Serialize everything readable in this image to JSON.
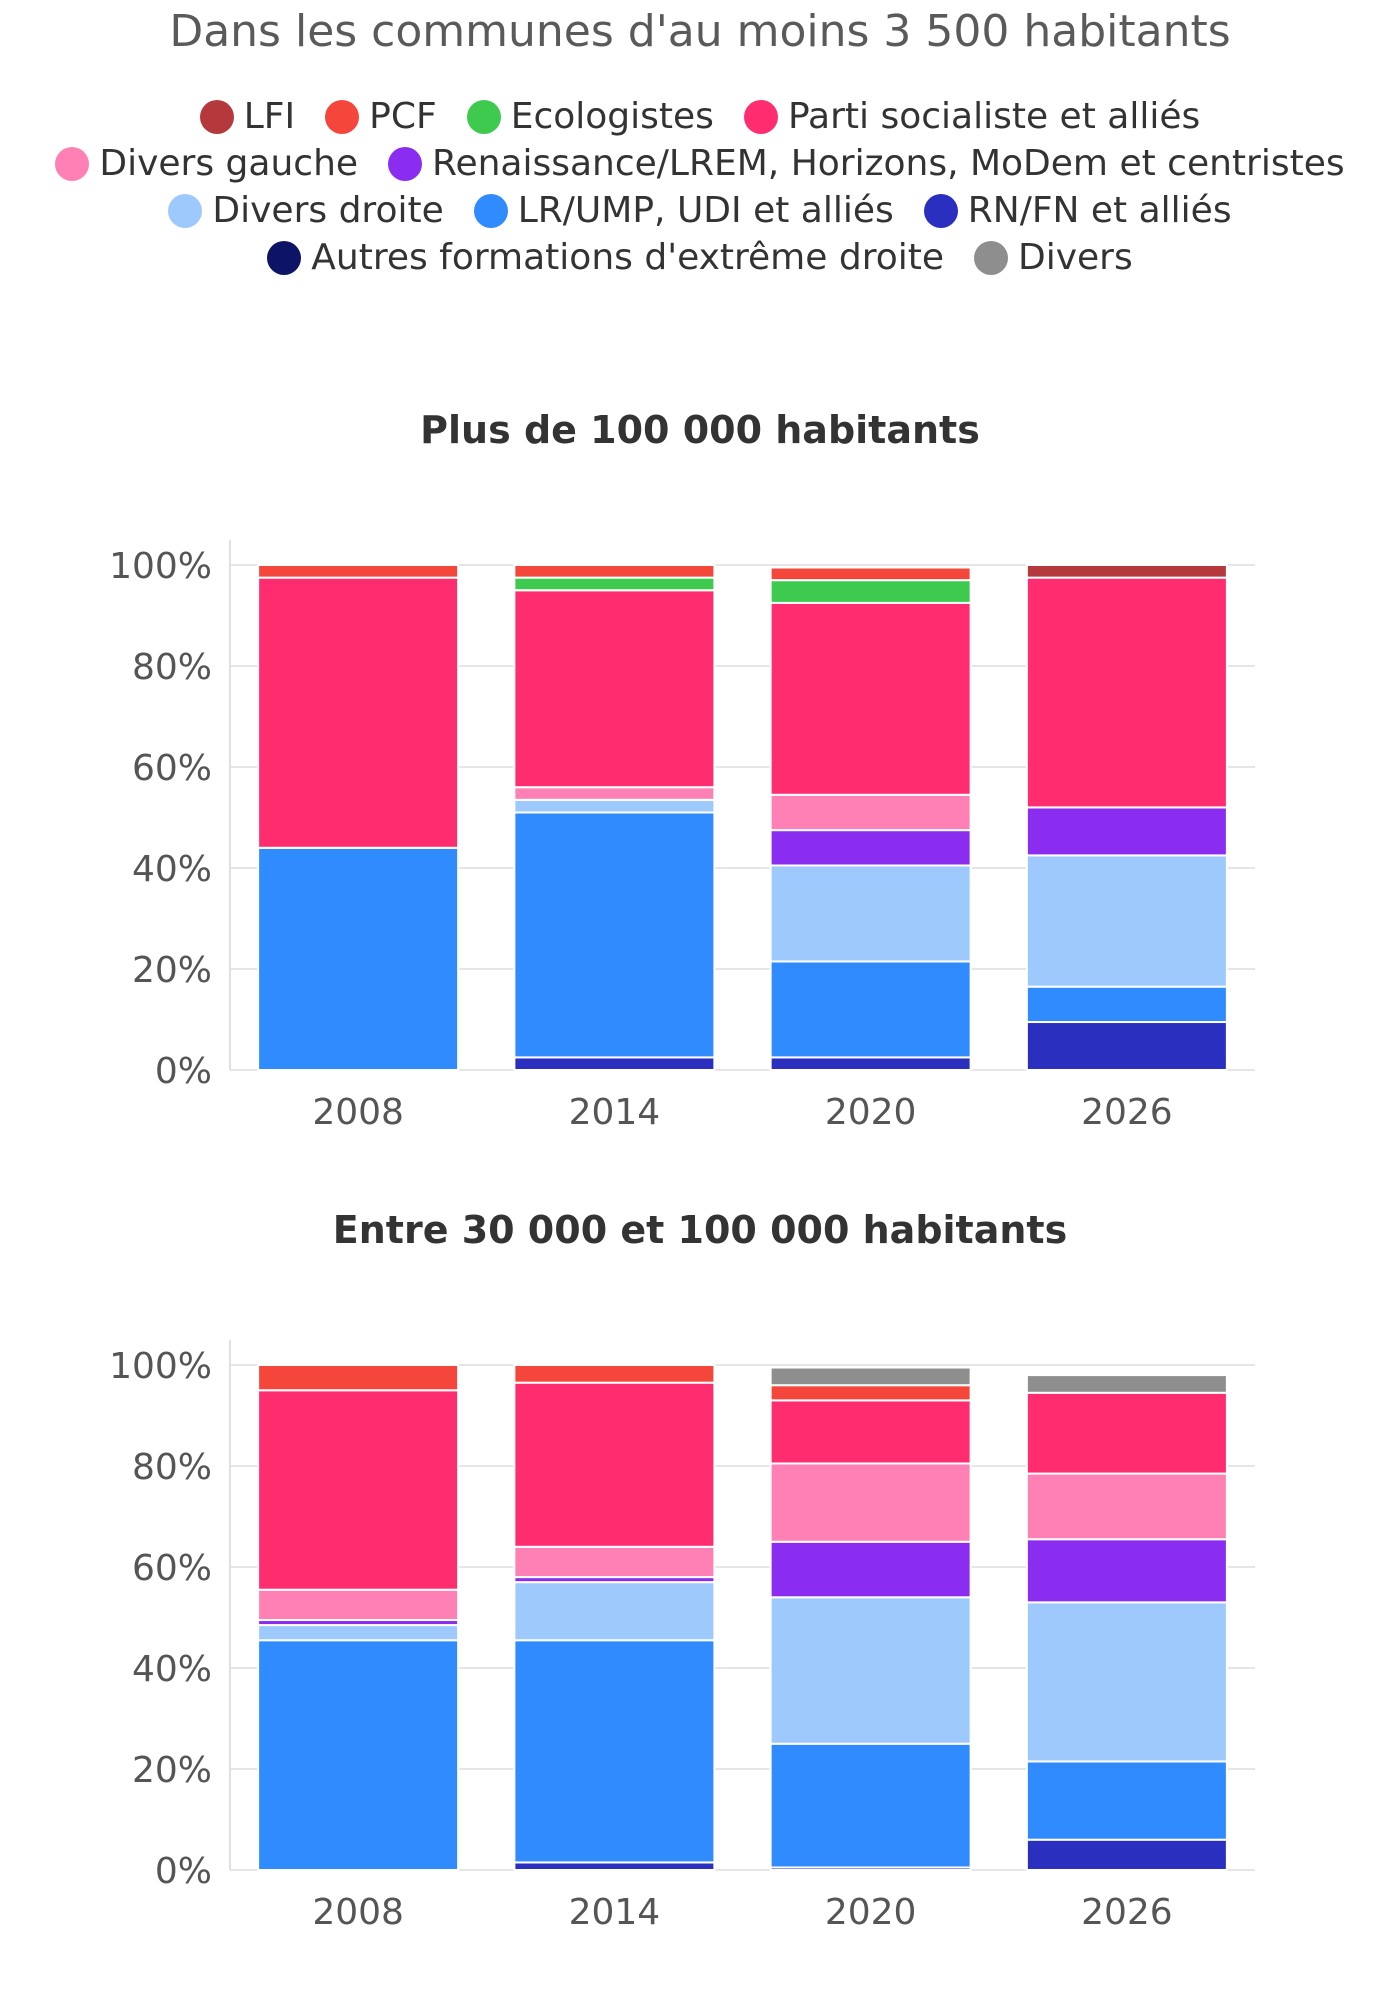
{
  "header": {
    "title": "Dans les communes d'au moins 3 500 habitants"
  },
  "legend": [
    {
      "label": "LFI",
      "color": "#b5393c"
    },
    {
      "label": "PCF",
      "color": "#f5463c"
    },
    {
      "label": "Ecologistes",
      "color": "#3ec94f"
    },
    {
      "label": "Parti socialiste et alliés",
      "color": "#ff2d6f"
    },
    {
      "label": "Divers gauche",
      "color": "#ff80b4"
    },
    {
      "label": "Renaissance/LREM, Horizons, MoDem et centristes",
      "color": "#8a2df0"
    },
    {
      "label": "Divers droite",
      "color": "#9ec9fc"
    },
    {
      "label": "LR/UMP, UDI et alliés",
      "color": "#2f8bff"
    },
    {
      "label": "RN/FN et alliés",
      "color": "#2b2fc0"
    },
    {
      "label": "Autres formations d'extrême droite",
      "color": "#0d1466"
    },
    {
      "label": "Divers",
      "color": "#8e8e8e"
    }
  ],
  "chart_data": [
    {
      "type": "bar",
      "stacked": true,
      "title": "Plus de 100 000 habitants",
      "categories": [
        "2008",
        "2014",
        "2020",
        "2026"
      ],
      "ylim": [
        0,
        100
      ],
      "yticks": [
        "0%",
        "20%",
        "40%",
        "60%",
        "80%",
        "100%"
      ],
      "series": [
        {
          "name": "Autres formations d'extrême droite",
          "values": [
            0,
            0,
            0,
            0
          ]
        },
        {
          "name": "RN/FN et alliés",
          "values": [
            0,
            2.5,
            2.5,
            9.5
          ]
        },
        {
          "name": "LR/UMP, UDI et alliés",
          "values": [
            44,
            48.5,
            19,
            7
          ]
        },
        {
          "name": "Divers droite",
          "values": [
            0,
            2.5,
            19,
            26
          ]
        },
        {
          "name": "Renaissance/LREM, Horizons, MoDem et centristes",
          "values": [
            0,
            0,
            7,
            9.5
          ]
        },
        {
          "name": "Divers gauche",
          "values": [
            0,
            2.5,
            7,
            0
          ]
        },
        {
          "name": "Parti socialiste et alliés",
          "values": [
            53.5,
            39,
            38,
            45.5
          ]
        },
        {
          "name": "Ecologistes",
          "values": [
            0,
            2.5,
            4.5,
            0
          ]
        },
        {
          "name": "PCF",
          "values": [
            2.5,
            2.5,
            2.5,
            0
          ]
        },
        {
          "name": "LFI",
          "values": [
            0,
            0,
            0,
            2.5
          ]
        },
        {
          "name": "Divers",
          "values": [
            0,
            0,
            0,
            0
          ]
        }
      ]
    },
    {
      "type": "bar",
      "stacked": true,
      "title": "Entre 30 000 et 100 000 habitants",
      "categories": [
        "2008",
        "2014",
        "2020",
        "2026"
      ],
      "ylim": [
        0,
        100
      ],
      "yticks": [
        "0%",
        "20%",
        "40%",
        "60%",
        "80%",
        "100%"
      ],
      "series": [
        {
          "name": "Autres formations d'extrême droite",
          "values": [
            0,
            0,
            0,
            0
          ]
        },
        {
          "name": "RN/FN et alliés",
          "values": [
            0,
            1.5,
            0.5,
            6
          ]
        },
        {
          "name": "LR/UMP, UDI et alliés",
          "values": [
            45.5,
            44,
            24.5,
            15.5
          ]
        },
        {
          "name": "Divers droite",
          "values": [
            3,
            11.5,
            29,
            31.5
          ]
        },
        {
          "name": "Renaissance/LREM, Horizons, MoDem et centristes",
          "values": [
            1,
            1,
            11,
            12.5
          ]
        },
        {
          "name": "Divers gauche",
          "values": [
            6,
            6,
            15.5,
            13
          ]
        },
        {
          "name": "Parti socialiste et alliés",
          "values": [
            39.5,
            32.5,
            12.5,
            16
          ]
        },
        {
          "name": "Ecologistes",
          "values": [
            0,
            0,
            0,
            0
          ]
        },
        {
          "name": "PCF",
          "values": [
            5,
            3.5,
            3,
            0
          ]
        },
        {
          "name": "LFI",
          "values": [
            0,
            0,
            0,
            0
          ]
        },
        {
          "name": "Divers",
          "values": [
            0,
            0,
            3.5,
            3.5
          ]
        }
      ]
    }
  ]
}
